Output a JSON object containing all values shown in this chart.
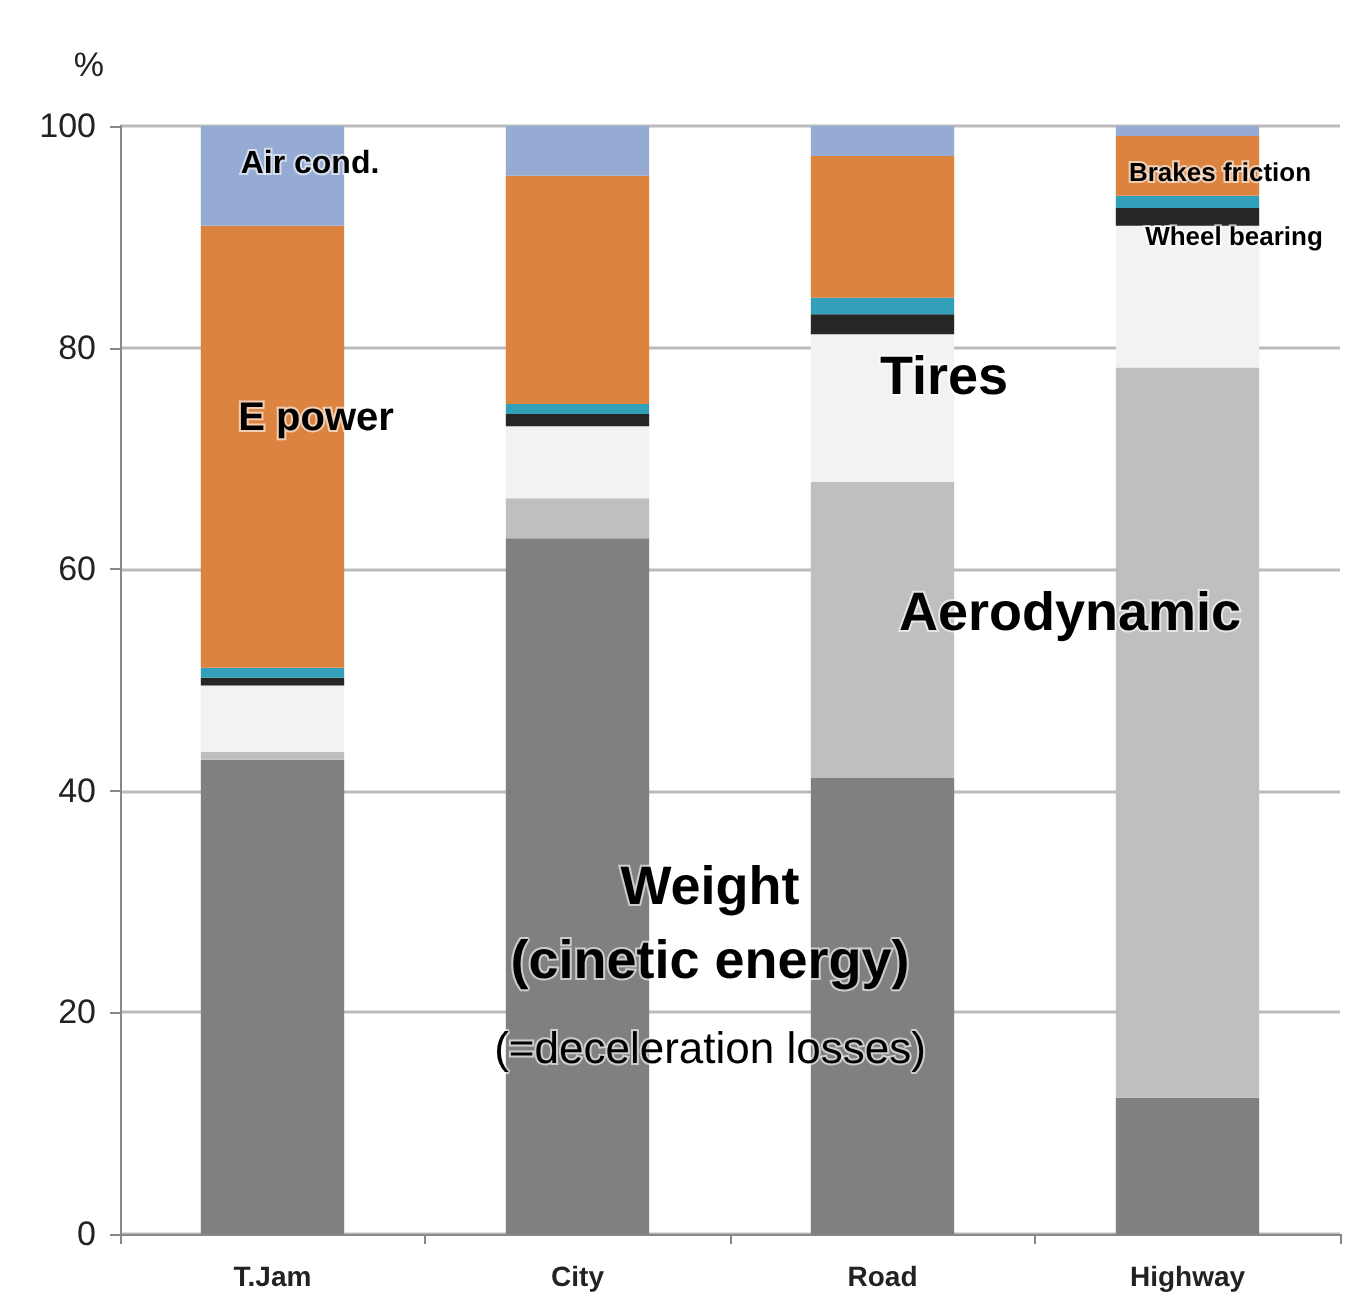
{
  "chart_data": {
    "type": "bar",
    "stacked": true,
    "ylabel": "%",
    "categories": [
      "T.Jam",
      "City",
      "Road",
      "Highway"
    ],
    "series": [
      {
        "color": "#808080",
        "values": [
          42.8,
          62.8,
          41.2,
          12.3
        ]
      },
      {
        "color": "#bfbfbf",
        "values": [
          0.7,
          3.6,
          26.7,
          65.9
        ]
      },
      {
        "color": "#f2f2f2",
        "values": [
          6.0,
          6.5,
          13.3,
          12.8
        ]
      },
      {
        "color": "#262626",
        "values": [
          0.7,
          1.1,
          1.8,
          1.6
        ]
      },
      {
        "color": "#31a0b8",
        "values": [
          0.9,
          0.9,
          1.5,
          1.1
        ]
      },
      {
        "color": "#dd8340",
        "values": [
          39.9,
          20.6,
          12.8,
          5.4
        ]
      },
      {
        "color": "#95abd3",
        "values": [
          9.0,
          4.5,
          2.7,
          0.9
        ]
      }
    ],
    "ylim": [
      0,
      100
    ],
    "yticks": [
      0,
      20,
      40,
      60,
      80,
      100
    ],
    "grid": "y",
    "annotations": [
      "Air cond.",
      "E power",
      "Tires",
      "Aerodynamic",
      "Brakes friction",
      "Wheel bearing",
      "Weight",
      "(cinetic energy)",
      "(=deceleration losses)"
    ]
  }
}
